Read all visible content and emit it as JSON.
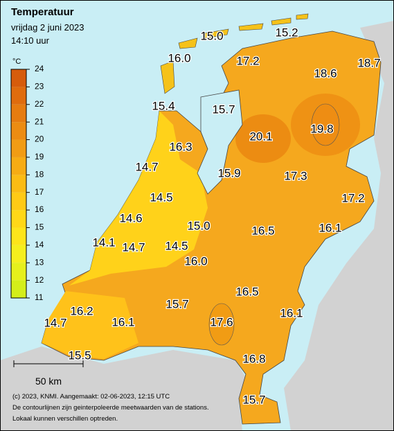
{
  "header": {
    "title": "Temperatuur",
    "date": "vrijdag 2 juni 2023",
    "time": "14:10 uur"
  },
  "legend": {
    "unit": "°C",
    "ticks": [
      11,
      12,
      13,
      14,
      15,
      16,
      17,
      18,
      19,
      20,
      21,
      22,
      23,
      24
    ],
    "colors": [
      "#d4ee1a",
      "#e6f01c",
      "#f5ef1e",
      "#fde51b",
      "#ffd818",
      "#ffca16",
      "#fbbc14",
      "#f6ac14",
      "#f19c14",
      "#ec8c12",
      "#e67c10",
      "#df6c0e",
      "#d65c0c"
    ]
  },
  "stations": [
    "15.0",
    "15.2",
    "16.0",
    "17.2",
    "18.6",
    "18.7",
    "15.4",
    "15.7",
    "20.1",
    "19.8",
    "16.3",
    "14.7",
    "15.9",
    "17.3",
    "14.5",
    "17.2",
    "14.6",
    "15.0",
    "16.5",
    "16.1",
    "14.1",
    "14.7",
    "14.5",
    "16.0",
    "16.5",
    "16.2",
    "15.7",
    "16.1",
    "14.7",
    "16.1",
    "17.6",
    "15.5",
    "16.8",
    "15.7"
  ],
  "scale_bar": "50 km",
  "credits": [
    "(c) 2023, KNMI. Aangemaakt: 02-06-2023, 12:15 UTC",
    "De contourlijnen zijn geinterpoleerde meetwaarden van de stations.",
    "Lokaal kunnen verschillen optreden."
  ]
}
